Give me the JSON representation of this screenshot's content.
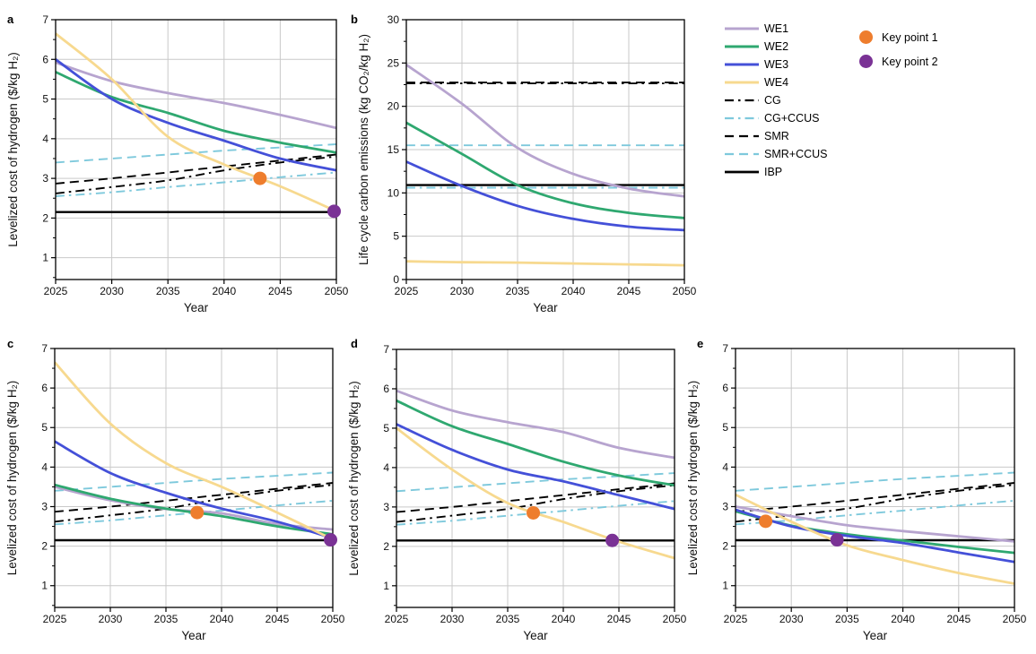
{
  "figure": {
    "background": "#ffffff"
  },
  "axis": {
    "grid_color": "#c9c9c9",
    "frame_color": "#000000",
    "tick_color": "#000000",
    "text_color": "#111111"
  },
  "styles": {
    "WE1": {
      "color": "#b7a4cf",
      "width": 2.8,
      "dash": ""
    },
    "WE2": {
      "color": "#2fa870",
      "width": 2.8,
      "dash": ""
    },
    "WE3": {
      "color": "#4450d8",
      "width": 2.8,
      "dash": ""
    },
    "WE4": {
      "color": "#f7d98f",
      "width": 2.8,
      "dash": ""
    },
    "CG": {
      "color": "#000000",
      "width": 1.9,
      "dash": "10 5 2.5 5"
    },
    "CG+CCUS": {
      "color": "#7ec9dc",
      "width": 1.9,
      "dash": "10 5 2.5 5"
    },
    "SMR": {
      "color": "#000000",
      "width": 1.9,
      "dash": "10 6"
    },
    "SMR+CCUS": {
      "color": "#7ec9dc",
      "width": 1.9,
      "dash": "10 6"
    },
    "IBP": {
      "color": "#000000",
      "width": 2.4,
      "dash": ""
    }
  },
  "legend": {
    "items": [
      {
        "name": "WE1",
        "label": "WE1"
      },
      {
        "name": "WE2",
        "label": "WE2"
      },
      {
        "name": "WE3",
        "label": "WE3"
      },
      {
        "name": "WE4",
        "label": "WE4"
      },
      {
        "name": "CG",
        "label": "CG"
      },
      {
        "name": "CG+CCUS",
        "label": "CG+CCUS"
      },
      {
        "name": "SMR",
        "label": "SMR"
      },
      {
        "name": "SMR+CCUS",
        "label": "SMR+CCUS"
      },
      {
        "name": "IBP",
        "label": "IBP"
      }
    ],
    "key_points": [
      {
        "label": "Key point 1",
        "color": "#ee7d2d"
      },
      {
        "label": "Key point 2",
        "color": "#7a3295"
      }
    ]
  },
  "chart_data": [
    {
      "id": "a",
      "label": "a",
      "type": "line",
      "xlabel": "Year",
      "ylabel": "Levelized cost of hydrogen ($/kg H₂)",
      "xlim": [
        2025,
        2050
      ],
      "ylim": [
        0.45,
        7
      ],
      "xticks": [
        2025,
        2030,
        2035,
        2040,
        2045,
        2050
      ],
      "yticks": [
        1,
        2,
        3,
        4,
        5,
        6,
        7
      ],
      "xgrid": [
        2030,
        2035,
        2040,
        2045
      ],
      "ygrid": [
        1,
        2,
        3,
        4,
        5,
        6
      ],
      "yminor": [
        0.5,
        1.5,
        2.5,
        3.5,
        4.5,
        5.5,
        6.5
      ],
      "x": [
        2025,
        2030,
        2035,
        2040,
        2045,
        2050
      ],
      "series": [
        {
          "name": "SMR+CCUS",
          "values": [
            3.4,
            3.5,
            3.6,
            3.7,
            3.78,
            3.86
          ]
        },
        {
          "name": "SMR",
          "values": [
            2.87,
            3.0,
            3.15,
            3.3,
            3.45,
            3.6
          ]
        },
        {
          "name": "CG",
          "values": [
            2.62,
            2.78,
            2.95,
            3.2,
            3.4,
            3.55
          ]
        },
        {
          "name": "CG+CCUS",
          "values": [
            2.55,
            2.65,
            2.78,
            2.9,
            3.03,
            3.15
          ]
        },
        {
          "name": "IBP",
          "values": [
            2.15,
            2.15,
            2.15,
            2.15,
            2.15,
            2.15
          ]
        },
        {
          "name": "WE1",
          "values": [
            5.92,
            5.45,
            5.15,
            4.9,
            4.6,
            4.27
          ]
        },
        {
          "name": "WE2",
          "values": [
            5.68,
            5.05,
            4.65,
            4.2,
            3.9,
            3.65
          ]
        },
        {
          "name": "WE3",
          "values": [
            6.0,
            5.0,
            4.4,
            3.95,
            3.5,
            3.2
          ]
        },
        {
          "name": "WE4",
          "values": [
            6.65,
            5.5,
            4.05,
            3.35,
            2.8,
            2.17
          ]
        }
      ],
      "key_points": [
        {
          "label": "Key point 1",
          "x": 2043.2,
          "y": 3.0
        },
        {
          "label": "Key point 2",
          "x": 2049.8,
          "y": 2.17
        }
      ]
    },
    {
      "id": "b",
      "label": "b",
      "type": "line",
      "xlabel": "Year",
      "ylabel": "Life cycle carbon emissions (kg CO₂/kg H₂)",
      "xlim": [
        2025,
        2050
      ],
      "ylim": [
        0,
        30
      ],
      "xticks": [
        2025,
        2030,
        2035,
        2040,
        2045,
        2050
      ],
      "yticks": [
        0,
        5,
        10,
        15,
        20,
        25,
        30
      ],
      "xgrid": [
        2030,
        2035,
        2040,
        2045
      ],
      "ygrid": [
        5,
        10,
        15,
        20,
        25
      ],
      "yminor": [
        2.5,
        7.5,
        12.5,
        17.5,
        22.5,
        27.5
      ],
      "x": [
        2025,
        2030,
        2035,
        2040,
        2045,
        2050
      ],
      "series": [
        {
          "name": "SMR+CCUS",
          "values": [
            15.5,
            15.5,
            15.5,
            15.5,
            15.5,
            15.5
          ]
        },
        {
          "name": "SMR",
          "values": [
            22.75,
            22.75,
            22.75,
            22.75,
            22.75,
            22.75
          ]
        },
        {
          "name": "CG",
          "values": [
            22.65,
            22.65,
            22.65,
            22.65,
            22.65,
            22.65
          ]
        },
        {
          "name": "CG+CCUS",
          "values": [
            10.6,
            10.6,
            10.6,
            10.6,
            10.6,
            10.6
          ]
        },
        {
          "name": "IBP",
          "values": [
            10.9,
            10.9,
            10.9,
            10.9,
            10.9,
            10.9
          ]
        },
        {
          "name": "WE1",
          "values": [
            24.8,
            20.3,
            15.2,
            12.2,
            10.5,
            9.6
          ]
        },
        {
          "name": "WE2",
          "values": [
            18.1,
            14.5,
            10.9,
            8.8,
            7.7,
            7.1
          ]
        },
        {
          "name": "WE3",
          "values": [
            13.6,
            10.8,
            8.5,
            7.0,
            6.1,
            5.7
          ]
        },
        {
          "name": "WE4",
          "values": [
            2.1,
            2.0,
            1.95,
            1.85,
            1.75,
            1.65
          ]
        }
      ],
      "key_points": []
    },
    {
      "id": "c",
      "label": "c",
      "type": "line",
      "xlabel": "Year",
      "ylabel": "Levelized cost of hydrogen ($/kg H₂)",
      "xlim": [
        2025,
        2050
      ],
      "ylim": [
        0.45,
        7
      ],
      "xticks": [
        2025,
        2030,
        2035,
        2040,
        2045,
        2050
      ],
      "yticks": [
        1,
        2,
        3,
        4,
        5,
        6,
        7
      ],
      "xgrid": [
        2030,
        2035,
        2040,
        2045
      ],
      "ygrid": [
        1,
        2,
        3,
        4,
        5,
        6
      ],
      "yminor": [
        0.5,
        1.5,
        2.5,
        3.5,
        4.5,
        5.5,
        6.5
      ],
      "x": [
        2025,
        2030,
        2035,
        2040,
        2045,
        2050
      ],
      "series": [
        {
          "name": "SMR+CCUS",
          "values": [
            3.4,
            3.5,
            3.6,
            3.7,
            3.78,
            3.86
          ]
        },
        {
          "name": "SMR",
          "values": [
            2.87,
            3.0,
            3.15,
            3.3,
            3.45,
            3.6
          ]
        },
        {
          "name": "CG",
          "values": [
            2.62,
            2.78,
            2.95,
            3.2,
            3.4,
            3.55
          ]
        },
        {
          "name": "CG+CCUS",
          "values": [
            2.55,
            2.65,
            2.78,
            2.9,
            3.03,
            3.15
          ]
        },
        {
          "name": "IBP",
          "values": [
            2.15,
            2.15,
            2.15,
            2.15,
            2.15,
            2.15
          ]
        },
        {
          "name": "WE1",
          "values": [
            3.5,
            3.16,
            2.94,
            2.83,
            2.56,
            2.42
          ]
        },
        {
          "name": "WE2",
          "values": [
            3.55,
            3.2,
            2.95,
            2.76,
            2.5,
            2.3
          ]
        },
        {
          "name": "WE3",
          "values": [
            4.65,
            3.85,
            3.35,
            2.95,
            2.62,
            2.2
          ]
        },
        {
          "name": "WE4",
          "values": [
            6.65,
            5.1,
            4.1,
            3.5,
            2.85,
            2.17
          ]
        }
      ],
      "key_points": [
        {
          "label": "Key point 1",
          "x": 2037.8,
          "y": 2.85
        },
        {
          "label": "Key point 2",
          "x": 2049.8,
          "y": 2.16
        }
      ]
    },
    {
      "id": "d",
      "label": "d",
      "type": "line",
      "xlabel": "Year",
      "ylabel": "Levelized cost of hydrogen ($/kg H₂)",
      "xlim": [
        2025,
        2050
      ],
      "ylim": [
        0.45,
        7
      ],
      "xticks": [
        2025,
        2030,
        2035,
        2040,
        2045,
        2050
      ],
      "yticks": [
        1,
        2,
        3,
        4,
        5,
        6,
        7
      ],
      "xgrid": [
        2030,
        2035,
        2040,
        2045
      ],
      "ygrid": [
        1,
        2,
        3,
        4,
        5,
        6
      ],
      "yminor": [
        0.5,
        1.5,
        2.5,
        3.5,
        4.5,
        5.5,
        6.5
      ],
      "x": [
        2025,
        2030,
        2035,
        2040,
        2045,
        2050
      ],
      "series": [
        {
          "name": "SMR+CCUS",
          "values": [
            3.4,
            3.5,
            3.6,
            3.7,
            3.78,
            3.86
          ]
        },
        {
          "name": "SMR",
          "values": [
            2.87,
            3.0,
            3.15,
            3.3,
            3.45,
            3.6
          ]
        },
        {
          "name": "CG",
          "values": [
            2.62,
            2.78,
            2.95,
            3.2,
            3.4,
            3.55
          ]
        },
        {
          "name": "CG+CCUS",
          "values": [
            2.55,
            2.65,
            2.78,
            2.9,
            3.03,
            3.15
          ]
        },
        {
          "name": "IBP",
          "values": [
            2.15,
            2.15,
            2.15,
            2.15,
            2.15,
            2.15
          ]
        },
        {
          "name": "WE1",
          "values": [
            5.95,
            5.45,
            5.15,
            4.9,
            4.5,
            4.25
          ]
        },
        {
          "name": "WE2",
          "values": [
            5.7,
            5.05,
            4.6,
            4.15,
            3.8,
            3.55
          ]
        },
        {
          "name": "WE3",
          "values": [
            5.1,
            4.45,
            3.95,
            3.65,
            3.3,
            2.95
          ]
        },
        {
          "name": "WE4",
          "values": [
            5.0,
            3.95,
            3.1,
            2.62,
            2.12,
            1.7
          ]
        }
      ],
      "key_points": [
        {
          "label": "Key point 1",
          "x": 2037.3,
          "y": 2.85
        },
        {
          "label": "Key point 2",
          "x": 2044.4,
          "y": 2.15
        }
      ]
    },
    {
      "id": "e",
      "label": "e",
      "type": "line",
      "xlabel": "Year",
      "ylabel": "Levelized cost of hydrogen ($/kg H₂)",
      "xlim": [
        2025,
        2050
      ],
      "ylim": [
        0.45,
        7
      ],
      "xticks": [
        2025,
        2030,
        2035,
        2040,
        2045,
        2050
      ],
      "yticks": [
        1,
        2,
        3,
        4,
        5,
        6,
        7
      ],
      "xgrid": [
        2030,
        2035,
        2040,
        2045
      ],
      "ygrid": [
        1,
        2,
        3,
        4,
        5,
        6
      ],
      "yminor": [
        0.5,
        1.5,
        2.5,
        3.5,
        4.5,
        5.5,
        6.5
      ],
      "x": [
        2025,
        2030,
        2035,
        2040,
        2045,
        2050
      ],
      "series": [
        {
          "name": "SMR+CCUS",
          "values": [
            3.4,
            3.5,
            3.6,
            3.7,
            3.78,
            3.86
          ]
        },
        {
          "name": "SMR",
          "values": [
            2.87,
            3.0,
            3.15,
            3.3,
            3.45,
            3.6
          ]
        },
        {
          "name": "CG",
          "values": [
            2.62,
            2.78,
            2.95,
            3.2,
            3.4,
            3.55
          ]
        },
        {
          "name": "CG+CCUS",
          "values": [
            2.55,
            2.65,
            2.78,
            2.9,
            3.03,
            3.15
          ]
        },
        {
          "name": "IBP",
          "values": [
            2.15,
            2.15,
            2.15,
            2.15,
            2.15,
            2.15
          ]
        },
        {
          "name": "WE1",
          "values": [
            3.0,
            2.76,
            2.53,
            2.38,
            2.25,
            2.12
          ]
        },
        {
          "name": "WE2",
          "values": [
            2.88,
            2.52,
            2.3,
            2.14,
            1.98,
            1.83
          ]
        },
        {
          "name": "WE3",
          "values": [
            2.92,
            2.5,
            2.26,
            2.08,
            1.84,
            1.6
          ]
        },
        {
          "name": "WE4",
          "values": [
            3.3,
            2.62,
            2.02,
            1.65,
            1.32,
            1.05
          ]
        }
      ],
      "key_points": [
        {
          "label": "Key point 1",
          "x": 2027.7,
          "y": 2.63
        },
        {
          "label": "Key point 2",
          "x": 2034.1,
          "y": 2.16
        }
      ]
    }
  ]
}
